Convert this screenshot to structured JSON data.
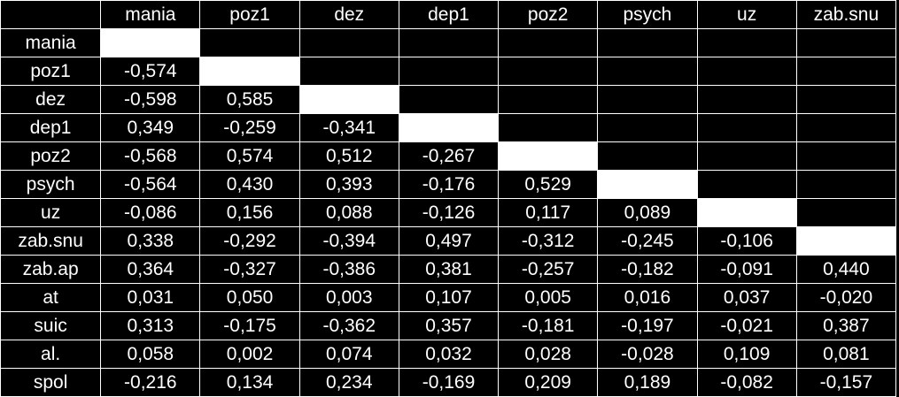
{
  "table": {
    "columns": [
      "mania",
      "poz1",
      "dez",
      "dep1",
      "poz2",
      "psych",
      "uz",
      "zab.snu"
    ],
    "rows": [
      {
        "label": "mania",
        "values": []
      },
      {
        "label": "poz1",
        "values": [
          "-0,574"
        ]
      },
      {
        "label": "dez",
        "values": [
          "-0,598",
          "0,585"
        ]
      },
      {
        "label": "dep1",
        "values": [
          "0,349",
          "-0,259",
          "-0,341"
        ]
      },
      {
        "label": "poz2",
        "values": [
          "-0,568",
          "0,574",
          "0,512",
          "-0,267"
        ]
      },
      {
        "label": "psych",
        "values": [
          "-0,564",
          "0,430",
          "0,393",
          "-0,176",
          "0,529"
        ]
      },
      {
        "label": "uz",
        "values": [
          "-0,086",
          "0,156",
          "0,088",
          "-0,126",
          "0,117",
          "0,089"
        ]
      },
      {
        "label": "zab.snu",
        "values": [
          "0,338",
          "-0,292",
          "-0,394",
          "0,497",
          "-0,312",
          "-0,245",
          "-0,106"
        ]
      },
      {
        "label": "zab.ap",
        "values": [
          "0,364",
          "-0,327",
          "-0,386",
          "0,381",
          "-0,257",
          "-0,182",
          "-0,091",
          "0,440"
        ]
      },
      {
        "label": "at",
        "values": [
          "0,031",
          "0,050",
          "0,003",
          "0,107",
          "0,005",
          "0,016",
          "0,037",
          "-0,020"
        ]
      },
      {
        "label": "suic",
        "values": [
          "0,313",
          "-0,175",
          "-0,362",
          "0,357",
          "-0,181",
          "-0,197",
          "-0,021",
          "0,387"
        ]
      },
      {
        "label": "al.",
        "values": [
          "0,058",
          "0,002",
          "0,074",
          "0,032",
          "0,028",
          "-0,028",
          "0,109",
          "0,081"
        ]
      },
      {
        "label": "spol",
        "values": [
          "-0,216",
          "0,134",
          "0,234",
          "-0,169",
          "0,209",
          "0,189",
          "-0,082",
          "-0,157"
        ]
      }
    ],
    "colors": {
      "background": "#000000",
      "text": "#ffffff",
      "grid": "#ffffff",
      "diagonal": "#ffffff"
    }
  }
}
